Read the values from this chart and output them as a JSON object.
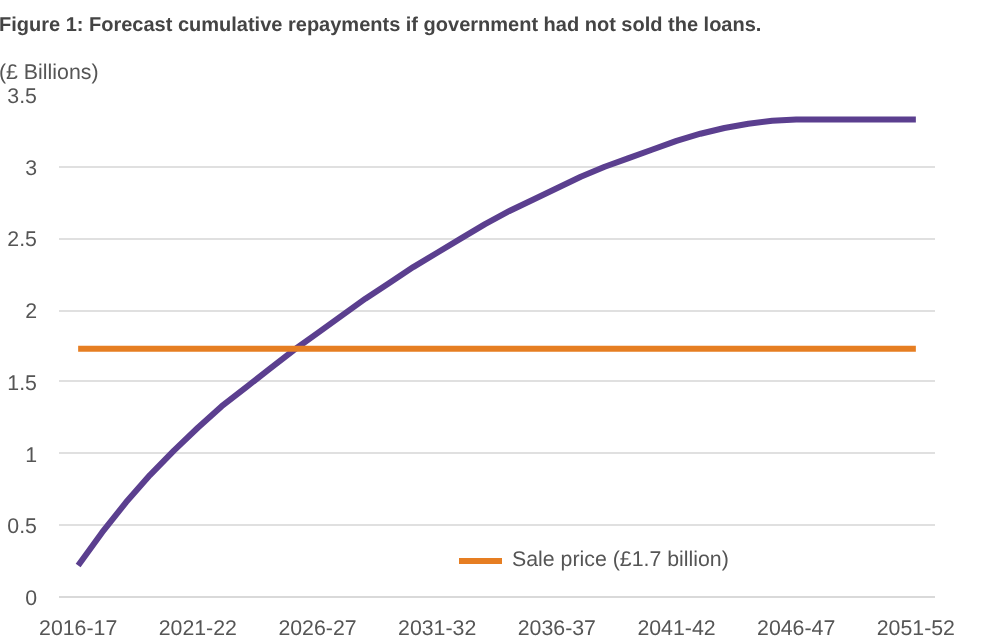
{
  "chart_data": {
    "type": "line",
    "title": "Figure 1: Forecast cumulative repayments if government had not sold the loans.",
    "ylabel": "(£ Billions)",
    "categories": [
      "2016-17",
      null,
      null,
      null,
      null,
      "2021-22",
      null,
      null,
      null,
      null,
      "2026-27",
      null,
      null,
      null,
      null,
      "2031-32",
      null,
      null,
      null,
      null,
      "2036-37",
      null,
      null,
      null,
      null,
      "2041-42",
      null,
      null,
      null,
      null,
      "2046-47",
      null,
      null,
      null,
      null,
      "2051-52"
    ],
    "series": [
      {
        "color": "#5b3f8f",
        "values": [
          0.22,
          0.45,
          0.66,
          0.85,
          1.02,
          1.18,
          1.33,
          1.46,
          1.59,
          1.72,
          1.84,
          1.96,
          2.08,
          2.19,
          2.3,
          2.4,
          2.5,
          2.6,
          2.69,
          2.77,
          2.85,
          2.93,
          3.0,
          3.06,
          3.12,
          3.18,
          3.23,
          3.27,
          3.3,
          3.32,
          3.33,
          3.33,
          3.33,
          3.33,
          3.33,
          3.33
        ]
      },
      {
        "name": "Sale price (£1.7 billion)",
        "color": "#e67e22",
        "values": [
          1.73,
          1.73,
          1.73,
          1.73,
          1.73,
          1.73,
          1.73,
          1.73,
          1.73,
          1.73,
          1.73,
          1.73,
          1.73,
          1.73,
          1.73,
          1.73,
          1.73,
          1.73,
          1.73,
          1.73,
          1.73,
          1.73,
          1.73,
          1.73,
          1.73,
          1.73,
          1.73,
          1.73,
          1.73,
          1.73,
          1.73,
          1.73,
          1.73,
          1.73,
          1.73,
          1.73
        ]
      }
    ],
    "ylim": [
      0,
      3.5
    ],
    "yticks": [
      0,
      0.5,
      1,
      1.5,
      2,
      2.5,
      3,
      3.5
    ],
    "grid": "y",
    "legend": "bottom",
    "marker": "none",
    "line_style": "solid"
  }
}
